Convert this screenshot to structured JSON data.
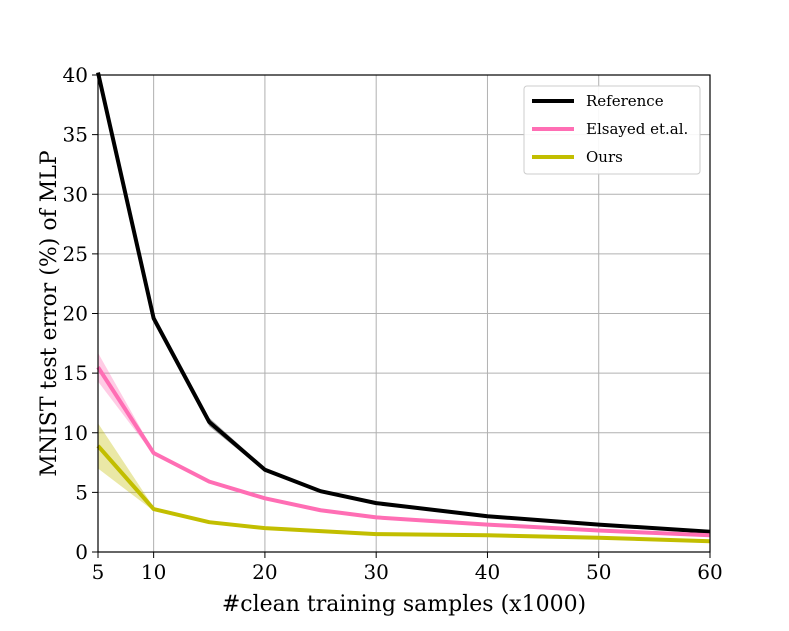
{
  "chart_data": {
    "type": "line",
    "xlabel": "#clean training samples (x1000)",
    "ylabel": "MNIST test error (%) of  MLP",
    "xlim": [
      5,
      60
    ],
    "ylim": [
      0,
      40
    ],
    "xticks": [
      5,
      10,
      20,
      30,
      40,
      50,
      60
    ],
    "yticks": [
      0,
      5,
      10,
      15,
      20,
      25,
      30,
      35,
      40
    ],
    "grid": true,
    "legend_position": "top-right",
    "series": [
      {
        "name": "Reference",
        "color": "#000000",
        "x": [
          5,
          10,
          15,
          20,
          25,
          30,
          40,
          50,
          60
        ],
        "y": [
          40.2,
          19.6,
          10.9,
          6.9,
          5.1,
          4.1,
          3.0,
          2.3,
          1.7
        ],
        "band": [
          0.0,
          0.35,
          0.35,
          0.15,
          0.1,
          0.1,
          0.05,
          0.05,
          0.05
        ]
      },
      {
        "name": "Elsayed et.al.",
        "color": "#ff6eb4",
        "x": [
          5,
          10,
          15,
          20,
          25,
          30,
          40,
          50,
          60
        ],
        "y": [
          15.5,
          8.3,
          5.9,
          4.5,
          3.5,
          2.9,
          2.3,
          1.8,
          1.4
        ],
        "band": [
          1.2,
          0.15,
          0.1,
          0.1,
          0.1,
          0.1,
          0.05,
          0.05,
          0.05
        ]
      },
      {
        "name": "Ours",
        "color": "#c2be00",
        "x": [
          5,
          10,
          15,
          20,
          25,
          30,
          40,
          50,
          60
        ],
        "y": [
          8.9,
          3.6,
          2.5,
          2.0,
          1.75,
          1.5,
          1.4,
          1.2,
          0.9
        ],
        "band": [
          1.9,
          0.15,
          0.1,
          0.05,
          0.05,
          0.05,
          0.05,
          0.05,
          0.05
        ]
      }
    ]
  }
}
